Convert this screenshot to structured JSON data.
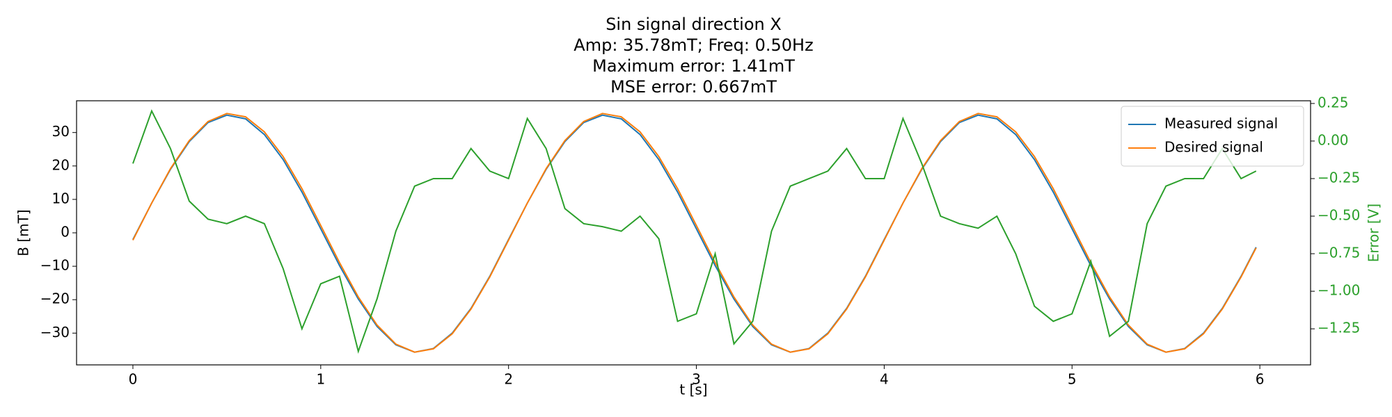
{
  "chart_data": {
    "type": "line",
    "title": [
      "Sin signal direction X",
      "Amp: 35.78mT; Freq: 0.50Hz",
      "Maximum error: 1.41mT",
      "MSE error: 0.667mT"
    ],
    "xlabel": "t [s]",
    "ylabel": "B [mT]",
    "y2label": "Error [V]",
    "x": [
      0,
      0.1,
      0.2,
      0.3,
      0.4,
      0.5,
      0.6,
      0.7,
      0.8,
      0.9,
      1.0,
      1.1,
      1.2,
      1.3,
      1.4,
      1.5,
      1.6,
      1.7,
      1.8,
      1.9,
      2.0,
      2.1,
      2.2,
      2.3,
      2.4,
      2.5,
      2.6,
      2.7,
      2.8,
      2.9,
      3.0,
      3.1,
      3.2,
      3.3,
      3.4,
      3.5,
      3.6,
      3.7,
      3.8,
      3.9,
      4.0,
      4.1,
      4.2,
      4.3,
      4.4,
      4.5,
      4.6,
      4.7,
      4.8,
      4.9,
      5.0,
      5.1,
      5.2,
      5.3,
      5.4,
      5.5,
      5.6,
      5.7,
      5.8,
      5.9,
      5.98
    ],
    "series": [
      {
        "name": "Measured signal",
        "color": "#1f77b4",
        "values": [
          -2.0,
          8.9,
          19.0,
          27.3,
          33.0,
          35.2,
          34.1,
          29.4,
          21.9,
          12.2,
          1.2,
          -9.8,
          -19.8,
          -28.0,
          -33.5,
          -35.7,
          -34.6,
          -30.0,
          -22.6,
          -13.0,
          -2.0,
          8.9,
          19.0,
          27.3,
          33.0,
          35.2,
          34.1,
          29.4,
          21.9,
          12.2,
          1.2,
          -9.8,
          -19.8,
          -28.0,
          -33.5,
          -35.7,
          -34.6,
          -30.0,
          -22.6,
          -13.0,
          -2.0,
          8.9,
          19.0,
          27.3,
          33.0,
          35.2,
          34.1,
          29.4,
          21.9,
          12.2,
          1.2,
          -9.8,
          -19.8,
          -28.0,
          -33.5,
          -35.7,
          -34.6,
          -30.0,
          -22.6,
          -13.0,
          -4.3
        ]
      },
      {
        "name": "Desired signal",
        "color": "#ff7f0e",
        "values": [
          -2.2,
          8.9,
          19.2,
          27.6,
          33.3,
          35.7,
          34.7,
          30.2,
          22.8,
          13.2,
          2.2,
          -8.9,
          -19.2,
          -27.6,
          -33.3,
          -35.7,
          -34.7,
          -30.2,
          -22.8,
          -13.2,
          -2.2,
          8.9,
          19.2,
          27.6,
          33.3,
          35.7,
          34.7,
          30.2,
          22.8,
          13.2,
          2.2,
          -8.9,
          -19.2,
          -27.6,
          -33.3,
          -35.7,
          -34.7,
          -30.2,
          -22.8,
          -13.2,
          -2.2,
          8.9,
          19.2,
          27.6,
          33.3,
          35.7,
          34.7,
          30.2,
          22.8,
          13.2,
          2.2,
          -8.9,
          -19.2,
          -27.6,
          -33.3,
          -35.7,
          -34.7,
          -30.2,
          -22.8,
          -13.2,
          -4.5
        ]
      },
      {
        "color": "#2ca02c",
        "axis": "y2",
        "values": [
          -0.15,
          0.2,
          -0.05,
          -0.4,
          -0.52,
          -0.55,
          -0.5,
          -0.55,
          -0.85,
          -1.25,
          -0.95,
          -0.9,
          -1.4,
          -1.05,
          -0.6,
          -0.3,
          -0.25,
          -0.25,
          -0.05,
          -0.2,
          -0.25,
          0.15,
          -0.05,
          -0.45,
          -0.55,
          -0.57,
          -0.6,
          -0.5,
          -0.65,
          -1.2,
          -1.15,
          -0.75,
          -1.35,
          -1.2,
          -0.6,
          -0.3,
          -0.25,
          -0.2,
          -0.05,
          -0.25,
          -0.25,
          0.15,
          -0.15,
          -0.5,
          -0.55,
          -0.58,
          -0.5,
          -0.75,
          -1.1,
          -1.2,
          -1.15,
          -0.8,
          -1.3,
          -1.2,
          -0.55,
          -0.3,
          -0.25,
          -0.25,
          -0.05,
          -0.25,
          -0.2
        ]
      }
    ],
    "xlim": [
      -0.3,
      6.27
    ],
    "xticks": [
      0,
      1,
      2,
      3,
      4,
      5,
      6
    ],
    "ylim": [
      -39.5,
      39.5
    ],
    "yticks": [
      {
        "value": -30,
        "label": "−30"
      },
      {
        "value": -20,
        "label": "−20"
      },
      {
        "value": -10,
        "label": "−10"
      },
      0,
      10,
      20,
      30
    ],
    "y2lim": [
      -1.49,
      0.268
    ],
    "y2ticks": [
      {
        "value": -1.25,
        "label": "−1.25"
      },
      {
        "value": -1.0,
        "label": "−1.00"
      },
      {
        "value": -0.75,
        "label": "−0.75"
      },
      {
        "value": -0.5,
        "label": "−0.50"
      },
      {
        "value": -0.25,
        "label": "−0.25"
      },
      {
        "value": 0,
        "label": "0.00"
      },
      0.25
    ],
    "y2color": "#2ca02c",
    "grid": false,
    "legend": "upper right"
  }
}
